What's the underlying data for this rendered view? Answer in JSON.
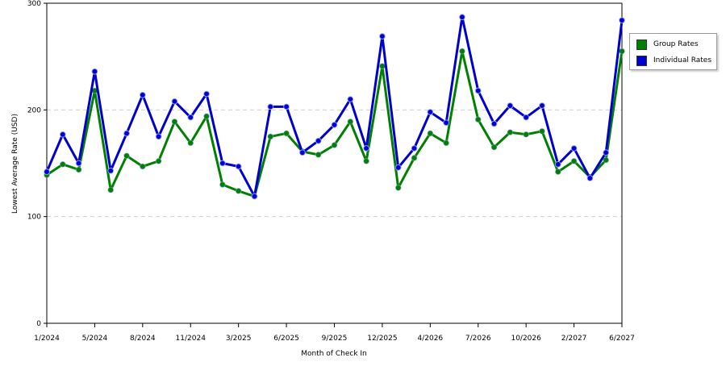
{
  "chart_data": {
    "type": "line",
    "xlabel": "Month of Check In",
    "ylabel": "Lowest Average Rate (USD)",
    "ylim": [
      0,
      300
    ],
    "yticks": [
      0,
      100,
      200,
      300
    ],
    "grid": true,
    "legend_position": "top-right",
    "x_tick_labels": [
      {
        "index": 0,
        "label": "1/2024"
      },
      {
        "index": 3,
        "label": "5/2024"
      },
      {
        "index": 6,
        "label": "8/2024"
      },
      {
        "index": 9,
        "label": "11/2024"
      },
      {
        "index": 12,
        "label": "3/2025"
      },
      {
        "index": 15,
        "label": "6/2025"
      },
      {
        "index": 18,
        "label": "9/2025"
      },
      {
        "index": 21,
        "label": "12/2025"
      },
      {
        "index": 24,
        "label": "4/2026"
      },
      {
        "index": 27,
        "label": "7/2026"
      },
      {
        "index": 30,
        "label": "10/2026"
      },
      {
        "index": 33,
        "label": "2/2027"
      },
      {
        "index": 36,
        "label": "6/2027"
      }
    ],
    "series": [
      {
        "name": "Group Rates",
        "color": "#008000",
        "values": [
          139,
          149,
          144,
          218,
          125,
          157,
          147,
          152,
          189,
          169,
          194,
          130,
          124,
          119,
          175,
          178,
          161,
          158,
          167,
          189,
          152,
          241,
          127,
          155,
          178,
          169,
          255,
          191,
          165,
          179,
          177,
          180,
          142,
          152,
          137,
          153,
          255
        ]
      },
      {
        "name": "Individual Rates",
        "color": "#0000CC",
        "values": [
          142,
          177,
          150,
          236,
          143,
          178,
          214,
          175,
          208,
          193,
          215,
          150,
          147,
          119,
          203,
          203,
          160,
          171,
          186,
          210,
          164,
          269,
          146,
          164,
          198,
          188,
          287,
          218,
          187,
          204,
          193,
          204,
          149,
          164,
          136,
          160,
          284
        ]
      }
    ]
  }
}
